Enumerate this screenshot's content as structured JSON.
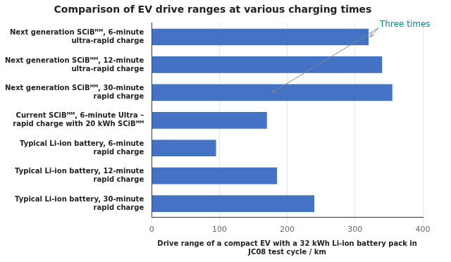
{
  "chart_data": {
    "type": "bar",
    "orientation": "horizontal",
    "title": "Comparison of EV drive ranges at various charging times",
    "xlabel": "Drive range of a compact EV with a 32 kWh Li-ion battery pack in\nJC08 test cycle / km",
    "categories": [
      "Next generation SCiBᴴᴹ, 6-minute\nultra-rapid charge",
      "Next generation SCiBᴴᴹ, 12-minute\nultra-rapid charge",
      "Next generation SCiBᴴᴹ, 30-minute\nrapid charge",
      "Current SCiBᴴᴹ, 6-minute Ultra –\nrapid charge with 20 kWh SCiBᴴᴹ",
      "Typical Li-ion battery, 6-minute\nrapid charge",
      "Typical Li-ion battery, 12-minute\nrapid charge",
      "Typical Li-ion battery, 30-minute\nrapid charge"
    ],
    "values": [
      320,
      340,
      355,
      170,
      95,
      185,
      240
    ],
    "color": "#4472C4",
    "xlim": [
      0,
      400
    ],
    "xticks": [
      0,
      100,
      200,
      300,
      400
    ],
    "grid": true,
    "annotations": [
      {
        "text": "Three times",
        "color": "#008B8B"
      }
    ]
  }
}
